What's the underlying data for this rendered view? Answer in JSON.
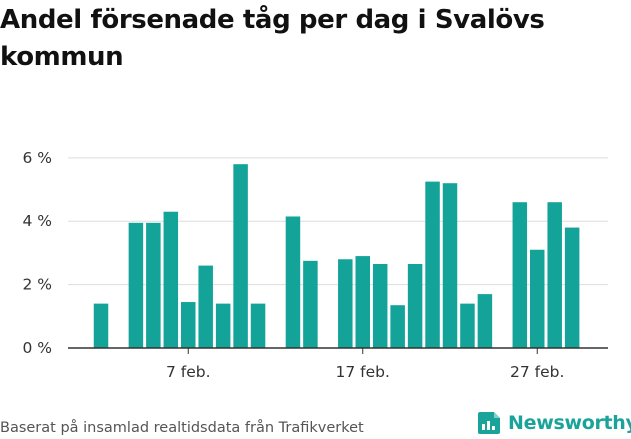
{
  "chart_data": {
    "type": "bar",
    "title": "Andel försenade tåg per dag i Svalövs kommun",
    "xlabel": "",
    "ylabel": "",
    "ylim": [
      0,
      6.5
    ],
    "y_ticks": [
      0,
      2,
      4,
      6
    ],
    "y_tick_labels": [
      "0 %",
      "2 %",
      "4 %",
      "6 %"
    ],
    "x_tick_labels": [
      "7 feb.",
      "17 feb.",
      "27 feb."
    ],
    "x_tick_categories": [
      "2024-02-07",
      "2024-02-17",
      "2024-02-27"
    ],
    "bar_color": "#13a399",
    "categories": [
      "2024-02-02",
      "2024-02-03",
      "2024-02-04",
      "2024-02-05",
      "2024-02-06",
      "2024-02-07",
      "2024-02-08",
      "2024-02-09",
      "2024-02-10",
      "2024-02-11",
      "2024-02-12",
      "2024-02-13",
      "2024-02-14",
      "2024-02-15",
      "2024-02-16",
      "2024-02-17",
      "2024-02-18",
      "2024-02-19",
      "2024-02-20",
      "2024-02-21",
      "2024-02-22",
      "2024-02-23",
      "2024-02-24",
      "2024-02-25",
      "2024-02-26",
      "2024-02-27",
      "2024-02-28",
      "2024-02-29"
    ],
    "values": [
      1.4,
      null,
      3.95,
      3.95,
      4.3,
      1.45,
      2.6,
      1.4,
      5.8,
      1.4,
      null,
      4.15,
      2.75,
      null,
      2.8,
      2.9,
      2.65,
      1.35,
      2.65,
      5.25,
      5.2,
      1.4,
      1.7,
      null,
      4.6,
      3.1,
      4.6,
      3.8
    ]
  },
  "footer": {
    "source": "Baserat på insamlad realtidsdata från Trafikverket",
    "brand": "Newsworthy"
  }
}
